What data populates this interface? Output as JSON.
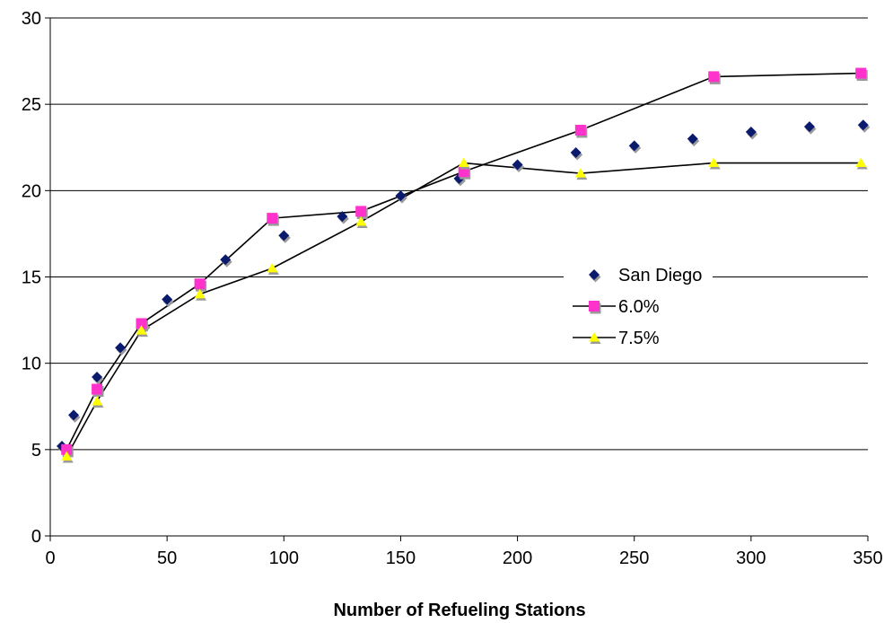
{
  "chart_data": {
    "type": "scatter",
    "title": "",
    "xlabel": "Number of Refueling Stations",
    "ylabel": "",
    "xlim": [
      0,
      350
    ],
    "ylim": [
      0,
      30
    ],
    "x_ticks": [
      "0",
      "50",
      "100",
      "150",
      "200",
      "250",
      "300",
      "350"
    ],
    "y_ticks": [
      "0",
      "5",
      "10",
      "15",
      "20",
      "25",
      "30"
    ],
    "grid": "horizontal",
    "legend_position": "right",
    "series": [
      {
        "name": "San Diego",
        "style": "markers",
        "marker": "diamond",
        "color": "#0a1b6e",
        "points": [
          {
            "x": 5,
            "y": 5.2
          },
          {
            "x": 10,
            "y": 7.0
          },
          {
            "x": 20,
            "y": 9.2
          },
          {
            "x": 30,
            "y": 10.9
          },
          {
            "x": 40,
            "y": 12.2
          },
          {
            "x": 50,
            "y": 13.7
          },
          {
            "x": 75,
            "y": 16.0
          },
          {
            "x": 100,
            "y": 17.4
          },
          {
            "x": 125,
            "y": 18.5
          },
          {
            "x": 150,
            "y": 19.7
          },
          {
            "x": 175,
            "y": 20.7
          },
          {
            "x": 200,
            "y": 21.5
          },
          {
            "x": 225,
            "y": 22.2
          },
          {
            "x": 250,
            "y": 22.6
          },
          {
            "x": 275,
            "y": 23.0
          },
          {
            "x": 300,
            "y": 23.4
          },
          {
            "x": 325,
            "y": 23.7
          },
          {
            "x": 348,
            "y": 23.8
          }
        ]
      },
      {
        "name": "6.0%",
        "style": "line-markers",
        "marker": "square",
        "color": "#ff33cc",
        "points": [
          {
            "x": 7,
            "y": 5.0
          },
          {
            "x": 20,
            "y": 8.5
          },
          {
            "x": 39,
            "y": 12.3
          },
          {
            "x": 64,
            "y": 14.6
          },
          {
            "x": 95,
            "y": 18.4
          },
          {
            "x": 133,
            "y": 18.8
          },
          {
            "x": 177,
            "y": 21.1
          },
          {
            "x": 227,
            "y": 23.5
          },
          {
            "x": 284,
            "y": 26.6
          },
          {
            "x": 347,
            "y": 26.8
          }
        ]
      },
      {
        "name": "7.5%",
        "style": "line-markers",
        "marker": "triangle",
        "color": "#ffff00",
        "points": [
          {
            "x": 7,
            "y": 4.6
          },
          {
            "x": 20,
            "y": 7.8
          },
          {
            "x": 39,
            "y": 11.9
          },
          {
            "x": 64,
            "y": 14.0
          },
          {
            "x": 95,
            "y": 15.5
          },
          {
            "x": 133,
            "y": 18.2
          },
          {
            "x": 177,
            "y": 21.6
          },
          {
            "x": 227,
            "y": 21.0
          },
          {
            "x": 284,
            "y": 21.6
          },
          {
            "x": 347,
            "y": 21.6
          }
        ]
      }
    ]
  }
}
